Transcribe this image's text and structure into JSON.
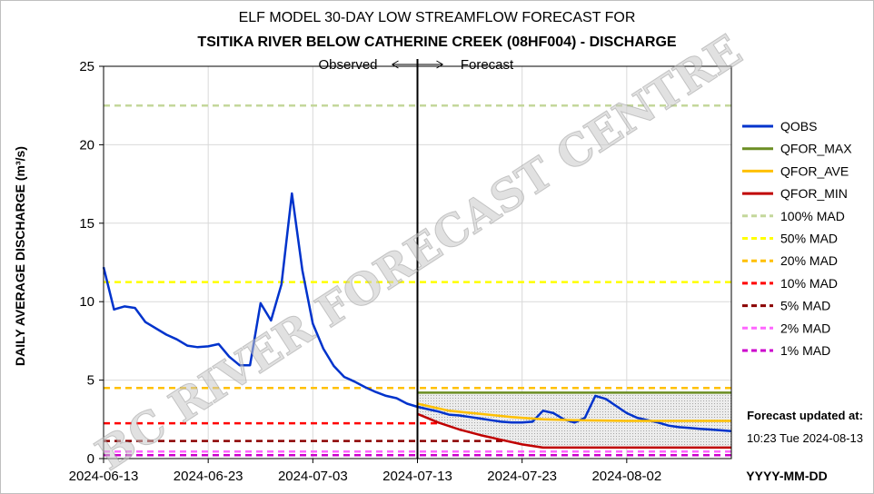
{
  "chart_data": {
    "type": "line",
    "title": "ELF MODEL 30-DAY LOW STREAMFLOW FORECAST FOR",
    "subtitle": "TSITIKA RIVER BELOW CATHERINE CREEK (08HF004) - DISCHARGE",
    "ylabel": "DAILY AVERAGE DISCHARGE (m³/s)",
    "xlabel": "YYYY-MM-DD",
    "ylim": [
      0,
      25
    ],
    "yticks": [
      0,
      5,
      10,
      15,
      20,
      25
    ],
    "xlim": [
      "2024-06-13",
      "2024-08-12"
    ],
    "xticks": [
      "2024-06-13",
      "2024-06-23",
      "2024-07-03",
      "2024-07-13",
      "2024-07-23",
      "2024-08-02"
    ],
    "grid": true,
    "legend_position": "right",
    "forecast_date": "2024-07-13",
    "observed_label": "Observed",
    "forecast_label": "Forecast",
    "updated_label": "Forecast updated at:",
    "updated_value": "10:23 Tue 2024-08-13",
    "watermark": "BC RIVER FORECAST CENTRE",
    "series": [
      {
        "name": "QOBS",
        "color": "#0033cc",
        "style": "solid",
        "x": [
          "2024-06-13",
          "2024-06-14",
          "2024-06-15",
          "2024-06-16",
          "2024-06-17",
          "2024-06-19",
          "2024-06-20",
          "2024-06-21",
          "2024-06-22",
          "2024-06-23",
          "2024-06-24",
          "2024-06-25",
          "2024-06-26",
          "2024-06-27",
          "2024-06-28",
          "2024-06-29",
          "2024-06-30",
          "2024-07-01",
          "2024-07-02",
          "2024-07-03",
          "2024-07-04",
          "2024-07-05",
          "2024-07-06",
          "2024-07-07",
          "2024-07-08",
          "2024-07-09",
          "2024-07-10",
          "2024-07-11",
          "2024-07-12",
          "2024-07-13",
          "2024-07-14",
          "2024-07-15",
          "2024-07-16",
          "2024-07-17",
          "2024-07-18",
          "2024-07-19",
          "2024-07-20",
          "2024-07-21",
          "2024-07-22",
          "2024-07-23",
          "2024-07-24",
          "2024-07-25",
          "2024-07-26",
          "2024-07-27",
          "2024-07-28",
          "2024-07-29",
          "2024-07-30",
          "2024-07-31",
          "2024-08-01",
          "2024-08-02",
          "2024-08-03",
          "2024-08-04",
          "2024-08-05",
          "2024-08-06",
          "2024-08-07",
          "2024-08-08",
          "2024-08-09",
          "2024-08-10",
          "2024-08-11",
          "2024-08-12"
        ],
        "y": [
          12.2,
          9.5,
          9.7,
          9.6,
          8.7,
          7.9,
          7.6,
          7.2,
          7.1,
          7.15,
          7.3,
          6.5,
          5.95,
          5.95,
          9.9,
          8.8,
          11.1,
          16.9,
          12.0,
          8.6,
          7.0,
          5.9,
          5.2,
          4.9,
          4.55,
          4.25,
          4.0,
          3.85,
          3.5,
          3.3,
          3.15,
          3.0,
          2.8,
          2.75,
          2.65,
          2.55,
          2.45,
          2.35,
          2.3,
          2.3,
          2.35,
          3.05,
          2.9,
          2.5,
          2.3,
          2.6,
          4.0,
          3.8,
          3.35,
          2.9,
          2.6,
          2.45,
          2.3,
          2.1,
          2.0,
          1.95,
          1.9,
          1.85,
          1.8,
          1.75
        ]
      },
      {
        "name": "QFOR_MAX",
        "color": "#6b8e23",
        "style": "solid",
        "x": [
          "2024-07-13",
          "2024-08-12"
        ],
        "y": [
          4.2,
          4.2
        ]
      },
      {
        "name": "QFOR_AVE",
        "color": "#ffc000",
        "style": "solid",
        "x": [
          "2024-07-13",
          "2024-07-16",
          "2024-07-19",
          "2024-07-22",
          "2024-07-25",
          "2024-07-28",
          "2024-08-02",
          "2024-08-07",
          "2024-08-12"
        ],
        "y": [
          3.5,
          3.05,
          2.85,
          2.65,
          2.5,
          2.45,
          2.4,
          2.4,
          2.4
        ]
      },
      {
        "name": "QFOR_MIN",
        "color": "#c00000",
        "style": "solid",
        "x": [
          "2024-07-13",
          "2024-07-15",
          "2024-07-17",
          "2024-07-19",
          "2024-07-21",
          "2024-07-23",
          "2024-07-25",
          "2024-07-30",
          "2024-08-04",
          "2024-08-12"
        ],
        "y": [
          2.85,
          2.3,
          1.85,
          1.5,
          1.2,
          0.9,
          0.7,
          0.7,
          0.7,
          0.7
        ]
      },
      {
        "name": "100% MAD",
        "color": "#c4d79b",
        "style": "dashed",
        "value": 22.5
      },
      {
        "name": "50% MAD",
        "color": "#ffff00",
        "style": "dashed",
        "value": 11.25
      },
      {
        "name": "20% MAD",
        "color": "#ffc000",
        "style": "dashed",
        "value": 4.5
      },
      {
        "name": "10% MAD",
        "color": "#ff0000",
        "style": "dashed",
        "value": 2.25
      },
      {
        "name": "5% MAD",
        "color": "#8b0000",
        "style": "dashed",
        "value": 1.12
      },
      {
        "name": "2% MAD",
        "color": "#ff66ff",
        "style": "dashed",
        "value": 0.45
      },
      {
        "name": "1% MAD",
        "color": "#cc00cc",
        "style": "dashed",
        "value": 0.22
      }
    ]
  }
}
